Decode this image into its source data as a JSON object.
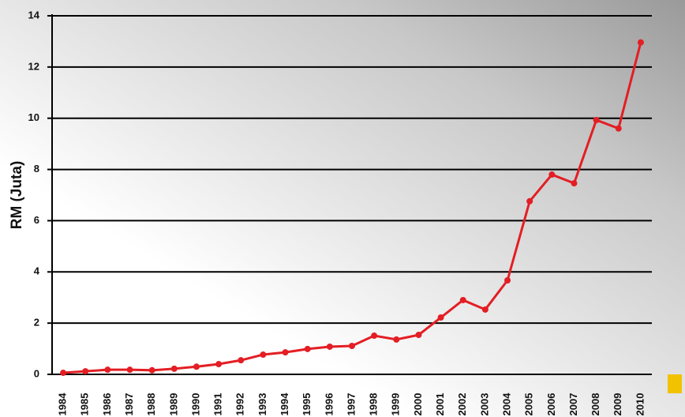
{
  "chart_data": {
    "type": "line",
    "y_label": "RM (Juta)",
    "categories": [
      "1984",
      "1985",
      "1986",
      "1987",
      "1988",
      "1989",
      "1990",
      "1991",
      "1992",
      "1993",
      "1994",
      "1995",
      "1996",
      "1997",
      "1998",
      "1999",
      "2000",
      "2001",
      "2002",
      "2003",
      "2004",
      "2005",
      "2006",
      "2007",
      "2008",
      "2009",
      "2010"
    ],
    "series": [
      {
        "color": "#e31e24",
        "values": [
          0.06,
          0.12,
          0.18,
          0.18,
          0.16,
          0.22,
          0.3,
          0.4,
          0.55,
          0.77,
          0.86,
          0.99,
          1.08,
          1.11,
          1.51,
          1.36,
          1.54,
          2.22,
          2.9,
          2.53,
          3.67,
          6.76,
          7.8,
          7.46,
          9.93,
          9.6,
          12.96
        ]
      }
    ],
    "ylim": [
      0,
      14
    ],
    "yticks": [
      0,
      2,
      4,
      6,
      8,
      10,
      12,
      14
    ],
    "grid": true
  }
}
